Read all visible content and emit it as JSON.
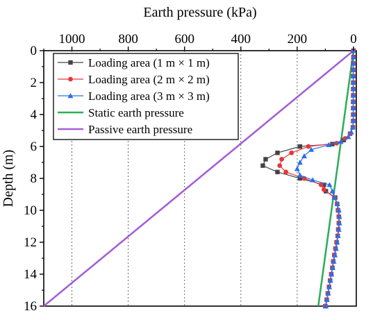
{
  "chart_data": {
    "type": "line",
    "title": "",
    "xlabel": "Earth pressure (kPa)",
    "ylabel": "Depth (m)",
    "x_axis_position": "top",
    "x_reversed": true,
    "y_reversed": true,
    "xlim": [
      1100,
      -10
    ],
    "ylim": [
      0,
      16
    ],
    "x_ticks": [
      1000,
      800,
      600,
      400,
      200,
      0
    ],
    "y_ticks": [
      0,
      2,
      4,
      6,
      8,
      10,
      12,
      14,
      16
    ],
    "x_tick_labels": [
      "1000",
      "800",
      "600",
      "400",
      "200",
      "0"
    ],
    "y_tick_labels": [
      "0",
      "2",
      "4",
      "6",
      "8",
      "10",
      "12",
      "14",
      "16"
    ],
    "grid": "vertical dashed gridlines",
    "legend_position": "top-left",
    "series": [
      {
        "name": "Loading area (1 m × 1 m)",
        "color": "#444444",
        "marker": "square",
        "points": [
          [
            0,
            0
          ],
          [
            0,
            0.4
          ],
          [
            1,
            0.8
          ],
          [
            1,
            1.2
          ],
          [
            1,
            1.6
          ],
          [
            1,
            2.0
          ],
          [
            1,
            2.4
          ],
          [
            1,
            2.8
          ],
          [
            1,
            3.2
          ],
          [
            1,
            3.6
          ],
          [
            1,
            4.0
          ],
          [
            1,
            4.4
          ],
          [
            2,
            4.8
          ],
          [
            12,
            5.2
          ],
          [
            35,
            5.6
          ],
          [
            75,
            5.85
          ],
          [
            190,
            6.0
          ],
          [
            270,
            6.4
          ],
          [
            312,
            6.8
          ],
          [
            322,
            7.2
          ],
          [
            270,
            7.6
          ],
          [
            190,
            8.0
          ],
          [
            105,
            8.4
          ],
          [
            98,
            8.8
          ],
          [
            65,
            9.2
          ],
          [
            58,
            9.6
          ],
          [
            55,
            10.0
          ],
          [
            52,
            10.4
          ],
          [
            52,
            10.8
          ],
          [
            54,
            11.2
          ],
          [
            56,
            11.6
          ],
          [
            60,
            12.0
          ],
          [
            64,
            12.4
          ],
          [
            68,
            12.8
          ],
          [
            72,
            13.2
          ],
          [
            75,
            13.6
          ],
          [
            79,
            14.0
          ],
          [
            83,
            14.4
          ],
          [
            87,
            14.8
          ],
          [
            91,
            15.2
          ],
          [
            95,
            15.6
          ],
          [
            100,
            16.0
          ]
        ]
      },
      {
        "name": "Loading area (2 m × 2 m)",
        "color": "#e8373a",
        "marker": "circle",
        "points": [
          [
            0,
            0
          ],
          [
            0,
            0.4
          ],
          [
            1,
            0.8
          ],
          [
            1,
            1.2
          ],
          [
            1,
            1.6
          ],
          [
            1,
            2.0
          ],
          [
            1,
            2.4
          ],
          [
            1,
            2.8
          ],
          [
            1,
            3.2
          ],
          [
            1,
            3.6
          ],
          [
            1,
            4.0
          ],
          [
            1,
            4.4
          ],
          [
            2,
            4.8
          ],
          [
            12,
            5.2
          ],
          [
            30,
            5.5
          ],
          [
            60,
            5.8
          ],
          [
            160,
            6.0
          ],
          [
            220,
            6.4
          ],
          [
            255,
            6.8
          ],
          [
            262,
            7.2
          ],
          [
            240,
            7.6
          ],
          [
            175,
            8.0
          ],
          [
            115,
            8.4
          ],
          [
            105,
            8.7
          ],
          [
            68,
            9.2
          ],
          [
            58,
            9.6
          ],
          [
            54,
            10.0
          ],
          [
            52,
            10.4
          ],
          [
            52,
            10.8
          ],
          [
            54,
            11.2
          ],
          [
            56,
            11.6
          ],
          [
            60,
            12.0
          ],
          [
            64,
            12.4
          ],
          [
            68,
            12.8
          ],
          [
            72,
            13.2
          ],
          [
            75,
            13.6
          ],
          [
            79,
            14.0
          ],
          [
            83,
            14.4
          ],
          [
            87,
            14.8
          ],
          [
            91,
            15.2
          ],
          [
            95,
            15.6
          ],
          [
            100,
            16.0
          ]
        ]
      },
      {
        "name": "Loading area (3 m × 3 m)",
        "color": "#2a6fe8",
        "marker": "triangle",
        "points": [
          [
            0,
            0
          ],
          [
            0,
            0.4
          ],
          [
            1,
            0.8
          ],
          [
            1,
            1.2
          ],
          [
            1,
            1.6
          ],
          [
            1,
            2.0
          ],
          [
            1,
            2.4
          ],
          [
            1,
            2.8
          ],
          [
            1,
            3.2
          ],
          [
            1,
            3.6
          ],
          [
            1,
            4.0
          ],
          [
            1,
            4.4
          ],
          [
            3,
            4.8
          ],
          [
            8,
            5.1
          ],
          [
            18,
            5.4
          ],
          [
            45,
            5.7
          ],
          [
            88,
            5.9
          ],
          [
            150,
            6.2
          ],
          [
            175,
            6.6
          ],
          [
            190,
            7.0
          ],
          [
            200,
            7.4
          ],
          [
            190,
            7.8
          ],
          [
            145,
            8.1
          ],
          [
            85,
            8.4
          ],
          [
            75,
            8.8
          ],
          [
            68,
            9.2
          ],
          [
            57,
            9.6
          ],
          [
            52,
            10.0
          ],
          [
            50,
            10.4
          ],
          [
            50,
            10.8
          ],
          [
            52,
            11.2
          ],
          [
            55,
            11.6
          ],
          [
            58,
            12.0
          ],
          [
            62,
            12.4
          ],
          [
            66,
            12.8
          ],
          [
            70,
            13.2
          ],
          [
            74,
            13.6
          ],
          [
            78,
            14.0
          ],
          [
            82,
            14.4
          ],
          [
            86,
            14.8
          ],
          [
            90,
            15.2
          ],
          [
            94,
            15.6
          ],
          [
            98,
            16.0
          ]
        ]
      },
      {
        "name": "Static earth pressure",
        "color": "#2fae5c",
        "marker": "none",
        "points": [
          [
            0,
            0
          ],
          [
            125,
            16
          ]
        ]
      },
      {
        "name": "Passive earth pressure",
        "color": "#a45fd6",
        "marker": "none",
        "points": [
          [
            0,
            0
          ],
          [
            1100,
            16
          ]
        ]
      }
    ]
  }
}
